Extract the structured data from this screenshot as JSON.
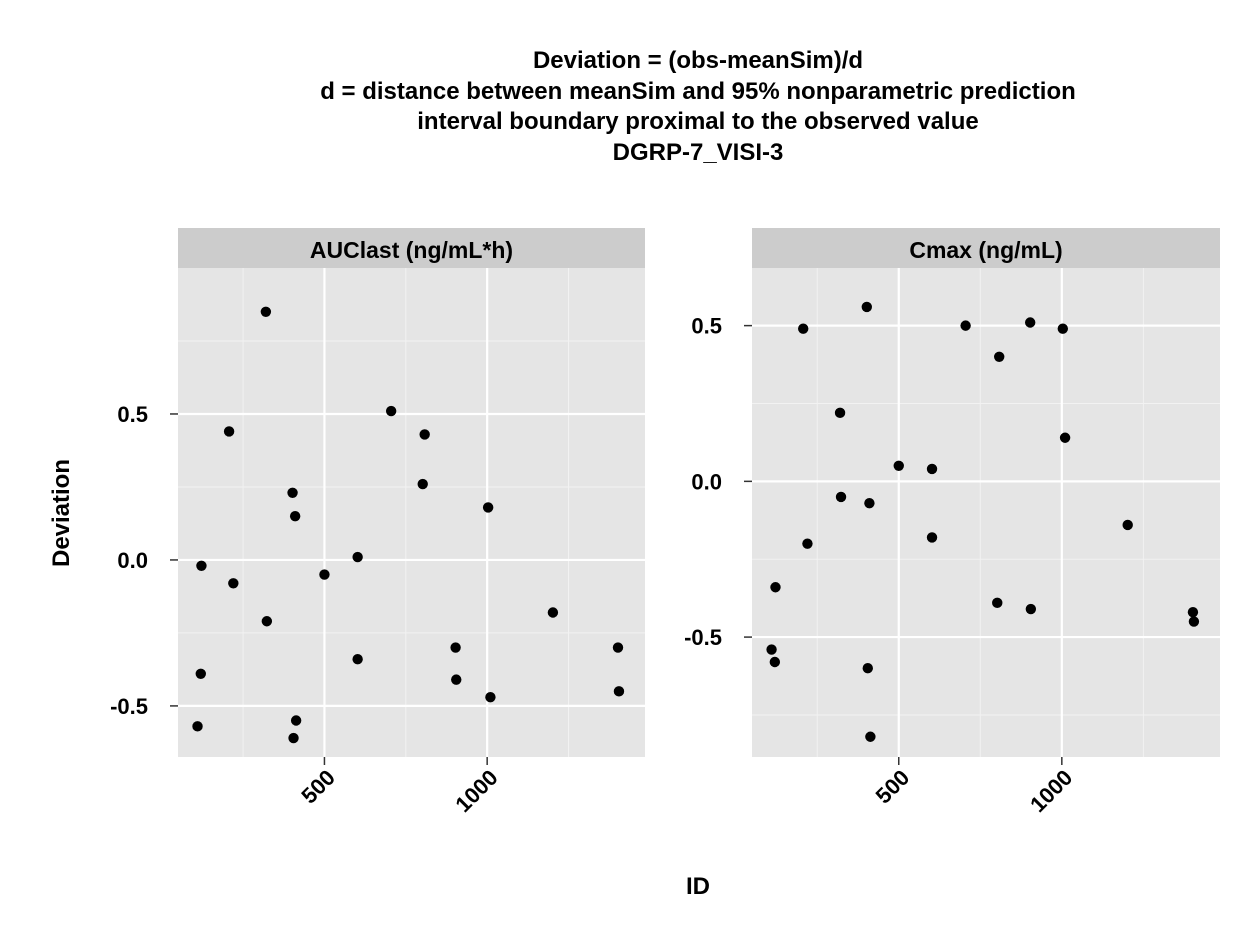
{
  "title_lines": [
    "Deviation = (obs-meanSim)/d",
    "d = distance between meanSim and 95% nonparametric prediction",
    "interval boundary proximal to the observed value",
    "DGRP-7_VISI-3"
  ],
  "xlabel": "ID",
  "ylabel": "Deviation",
  "colors": {
    "panel_bg": "#e5e5e5",
    "strip_bg": "#cccccc",
    "grid_major": "#ffffff",
    "grid_minor": "#f2f2f2",
    "point": "#000000"
  },
  "chart_data": [
    {
      "type": "scatter",
      "title": "AUClast (ng/mL*h)",
      "xlabel": "ID",
      "ylabel": "Deviation",
      "xlim": [
        50,
        1485
      ],
      "ylim": [
        -0.675,
        1.0
      ],
      "x_ticks": [
        500,
        1000
      ],
      "x_tick_labels": [
        "500",
        "1000"
      ],
      "y_ticks": [
        -0.5,
        0.0,
        0.5
      ],
      "y_tick_labels": [
        "-0.5",
        "0.0",
        "0.5"
      ],
      "grid": true,
      "points": [
        {
          "x": 110,
          "y": -0.57
        },
        {
          "x": 120,
          "y": -0.39
        },
        {
          "x": 122,
          "y": -0.02
        },
        {
          "x": 207,
          "y": 0.44
        },
        {
          "x": 220,
          "y": -0.08
        },
        {
          "x": 320,
          "y": 0.85
        },
        {
          "x": 323,
          "y": -0.21
        },
        {
          "x": 402,
          "y": 0.23
        },
        {
          "x": 405,
          "y": -0.61
        },
        {
          "x": 410,
          "y": 0.15
        },
        {
          "x": 413,
          "y": -0.55
        },
        {
          "x": 500,
          "y": -0.05
        },
        {
          "x": 602,
          "y": 0.01
        },
        {
          "x": 602,
          "y": -0.34
        },
        {
          "x": 705,
          "y": 0.51
        },
        {
          "x": 802,
          "y": 0.26
        },
        {
          "x": 808,
          "y": 0.43
        },
        {
          "x": 903,
          "y": -0.3
        },
        {
          "x": 905,
          "y": -0.41
        },
        {
          "x": 1003,
          "y": 0.18
        },
        {
          "x": 1010,
          "y": -0.47
        },
        {
          "x": 1202,
          "y": -0.18
        },
        {
          "x": 1402,
          "y": -0.3
        },
        {
          "x": 1405,
          "y": -0.45
        }
      ]
    },
    {
      "type": "scatter",
      "title": "Cmax (ng/mL)",
      "xlabel": "ID",
      "ylabel": "Deviation",
      "xlim": [
        50,
        1485
      ],
      "ylim": [
        -0.885,
        0.685
      ],
      "x_ticks": [
        500,
        1000
      ],
      "x_tick_labels": [
        "500",
        "1000"
      ],
      "y_ticks": [
        -0.5,
        0.0,
        0.5
      ],
      "y_tick_labels": [
        "-0.5",
        "0.0",
        "0.5"
      ],
      "grid": true,
      "points": [
        {
          "x": 110,
          "y": -0.54
        },
        {
          "x": 120,
          "y": -0.58
        },
        {
          "x": 122,
          "y": -0.34
        },
        {
          "x": 207,
          "y": 0.49
        },
        {
          "x": 220,
          "y": -0.2
        },
        {
          "x": 320,
          "y": 0.22
        },
        {
          "x": 323,
          "y": -0.05
        },
        {
          "x": 402,
          "y": 0.56
        },
        {
          "x": 405,
          "y": -0.6
        },
        {
          "x": 410,
          "y": -0.07
        },
        {
          "x": 413,
          "y": -0.82
        },
        {
          "x": 500,
          "y": 0.05
        },
        {
          "x": 602,
          "y": 0.04
        },
        {
          "x": 602,
          "y": -0.18
        },
        {
          "x": 705,
          "y": 0.5
        },
        {
          "x": 802,
          "y": -0.39
        },
        {
          "x": 808,
          "y": 0.4
        },
        {
          "x": 903,
          "y": 0.51
        },
        {
          "x": 905,
          "y": -0.41
        },
        {
          "x": 1003,
          "y": 0.49
        },
        {
          "x": 1010,
          "y": 0.14
        },
        {
          "x": 1202,
          "y": -0.14
        },
        {
          "x": 1402,
          "y": -0.42
        },
        {
          "x": 1405,
          "y": -0.45
        }
      ]
    }
  ]
}
